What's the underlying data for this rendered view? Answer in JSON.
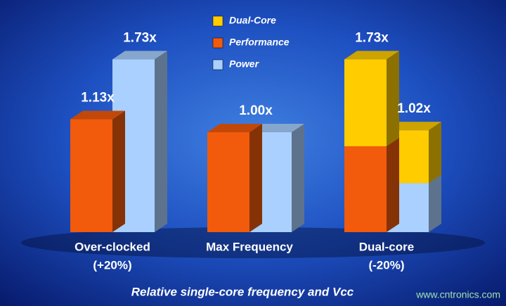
{
  "chart_data": {
    "type": "bar3d",
    "title": "Relative single-core frequency and Vcc",
    "watermark": "www.cntronics.com",
    "categories": [
      [
        "Over-clocked",
        "(+20%)"
      ],
      [
        "Max Frequency"
      ],
      [
        "Dual-core",
        "(-20%)"
      ]
    ],
    "legend": [
      {
        "name": "Dual-Core",
        "color": "#ffcc00"
      },
      {
        "name": "Performance",
        "color": "#f25a0c"
      },
      {
        "name": "Power",
        "color": "#a9d0ff"
      }
    ],
    "series": [
      {
        "name": "Performance",
        "stack": "left",
        "values": [
          1.13,
          1.0,
          0.86
        ]
      },
      {
        "name": "Dual-Core",
        "stack": "left",
        "values": [
          null,
          null,
          0.87
        ]
      },
      {
        "name": "Power",
        "stack": "right",
        "values": [
          1.73,
          1.0,
          0.49
        ]
      },
      {
        "name": "Dual-Core",
        "stack": "right",
        "values": [
          null,
          null,
          0.53
        ]
      }
    ],
    "totals": [
      {
        "stack": "left",
        "values": [
          1.13,
          1.0,
          1.73
        ],
        "value_labels": [
          "1.13x",
          "1.00x",
          "1.73x"
        ]
      },
      {
        "stack": "right",
        "values": [
          1.73,
          null,
          1.02
        ],
        "value_labels": [
          "1.73x",
          null,
          "1.02x"
        ]
      }
    ],
    "ylim": [
      0,
      2
    ]
  }
}
